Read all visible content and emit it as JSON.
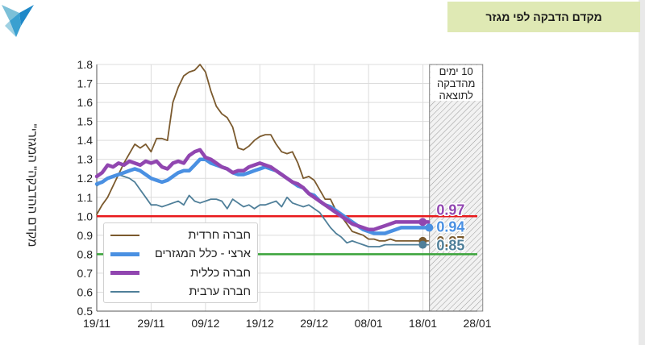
{
  "header": {
    "title": "מקדם הדבקה לפי מגזר"
  },
  "colors": {
    "header_bg": "#dfe9b4",
    "haredi": "#7b5a2e",
    "national": "#4a90e2",
    "general": "#9146b0",
    "arab": "#4f7f99",
    "threshold_red": "#e8191b",
    "threshold_green": "#3aa33a"
  },
  "chart_data": {
    "type": "line",
    "ylabel": "\"מקדם ההדבקה\" המגזרי",
    "ylim": [
      0.5,
      1.8
    ],
    "y_ticks": [
      "1.8",
      "1.7",
      "1.6",
      "1.5",
      "1.4",
      "1.3",
      "1.2",
      "1.1",
      "1.0",
      "0.9",
      "0.8",
      "0.7",
      "0.6",
      "0.5"
    ],
    "x_ticks": [
      "19/11",
      "29/11",
      "09/12",
      "19/12",
      "29/12",
      "08/01",
      "18/01",
      "28/01"
    ],
    "grid": true,
    "reference_lines": [
      {
        "y": 1.0,
        "color": "red"
      },
      {
        "y": 0.8,
        "color": "green"
      }
    ],
    "shaded_region": {
      "from_day": 61.2,
      "to_day": 71,
      "label": "10 ימים מהדבקה לתוצאה"
    },
    "series": [
      {
        "name": "חברה חרדית",
        "color": "#7b5a2e",
        "x": [
          0,
          1,
          2,
          3,
          4,
          5,
          6,
          7,
          8,
          9,
          10,
          11,
          12,
          13,
          14,
          15,
          16,
          17,
          18,
          19,
          20,
          21,
          22,
          23,
          24,
          25,
          26,
          27,
          28,
          29,
          30,
          31,
          32,
          33,
          34,
          35,
          36,
          37,
          38,
          39,
          40,
          41,
          42,
          43,
          44,
          45,
          46,
          47,
          48,
          49,
          50,
          51,
          52,
          53,
          54,
          55,
          56,
          57,
          58,
          59,
          60,
          61
        ],
        "values": [
          1.01,
          1.06,
          1.1,
          1.16,
          1.22,
          1.28,
          1.33,
          1.38,
          1.36,
          1.38,
          1.34,
          1.41,
          1.41,
          1.4,
          1.6,
          1.68,
          1.74,
          1.76,
          1.77,
          1.8,
          1.76,
          1.66,
          1.58,
          1.54,
          1.52,
          1.47,
          1.36,
          1.35,
          1.37,
          1.4,
          1.42,
          1.43,
          1.43,
          1.38,
          1.34,
          1.33,
          1.34,
          1.28,
          1.2,
          1.21,
          1.19,
          1.14,
          1.09,
          1.09,
          1.03,
          1.0,
          0.96,
          0.92,
          0.91,
          0.9,
          0.88,
          0.88,
          0.87,
          0.87,
          0.88,
          0.87,
          0.87,
          0.87,
          0.87,
          0.87,
          0.87,
          0.87
        ],
        "end_label": "0.87"
      },
      {
        "name": "ארצי - כלל המגזרים",
        "color": "#4a90e2",
        "x": [
          0,
          1,
          2,
          3,
          4,
          5,
          6,
          7,
          8,
          9,
          10,
          11,
          12,
          13,
          14,
          15,
          16,
          17,
          18,
          19,
          20,
          21,
          22,
          23,
          24,
          25,
          26,
          27,
          28,
          29,
          30,
          31,
          32,
          33,
          34,
          35,
          36,
          37,
          38,
          39,
          40,
          41,
          42,
          43,
          44,
          45,
          46,
          47,
          48,
          49,
          50,
          51,
          52,
          53,
          54,
          55,
          56,
          57,
          58,
          59,
          60,
          61
        ],
        "values": [
          1.17,
          1.18,
          1.2,
          1.21,
          1.22,
          1.23,
          1.24,
          1.25,
          1.24,
          1.22,
          1.2,
          1.19,
          1.18,
          1.19,
          1.21,
          1.23,
          1.24,
          1.24,
          1.27,
          1.3,
          1.3,
          1.28,
          1.27,
          1.26,
          1.25,
          1.23,
          1.22,
          1.22,
          1.23,
          1.24,
          1.25,
          1.26,
          1.25,
          1.24,
          1.22,
          1.2,
          1.18,
          1.16,
          1.15,
          1.12,
          1.11,
          1.08,
          1.06,
          1.05,
          1.03,
          1.01,
          0.99,
          0.97,
          0.95,
          0.93,
          0.92,
          0.91,
          0.91,
          0.91,
          0.92,
          0.93,
          0.94,
          0.94,
          0.94,
          0.94,
          0.94,
          0.94
        ],
        "end_label": "0.94"
      },
      {
        "name": "חברה כללית",
        "color": "#9146b0",
        "x": [
          0,
          1,
          2,
          3,
          4,
          5,
          6,
          7,
          8,
          9,
          10,
          11,
          12,
          13,
          14,
          15,
          16,
          17,
          18,
          19,
          20,
          21,
          22,
          23,
          24,
          25,
          26,
          27,
          28,
          29,
          30,
          31,
          32,
          33,
          34,
          35,
          36,
          37,
          38,
          39,
          40,
          41,
          42,
          43,
          44,
          45,
          46,
          47,
          48,
          49,
          50,
          51,
          52,
          53,
          54,
          55,
          56,
          57,
          58,
          59,
          60,
          61
        ],
        "values": [
          1.21,
          1.23,
          1.27,
          1.26,
          1.28,
          1.27,
          1.29,
          1.28,
          1.27,
          1.29,
          1.28,
          1.29,
          1.26,
          1.25,
          1.28,
          1.29,
          1.28,
          1.32,
          1.34,
          1.35,
          1.31,
          1.3,
          1.28,
          1.26,
          1.25,
          1.23,
          1.24,
          1.24,
          1.26,
          1.27,
          1.28,
          1.27,
          1.26,
          1.24,
          1.22,
          1.2,
          1.18,
          1.17,
          1.15,
          1.12,
          1.1,
          1.08,
          1.06,
          1.04,
          1.02,
          1.0,
          0.98,
          0.96,
          0.95,
          0.94,
          0.93,
          0.93,
          0.94,
          0.95,
          0.96,
          0.97,
          0.97,
          0.97,
          0.97,
          0.97,
          0.97,
          0.97
        ],
        "end_label": "0.97"
      },
      {
        "name": "חברה ערבית",
        "color": "#4f7f99",
        "x": [
          0,
          1,
          2,
          3,
          4,
          5,
          6,
          7,
          8,
          9,
          10,
          11,
          12,
          13,
          14,
          15,
          16,
          17,
          18,
          19,
          20,
          21,
          22,
          23,
          24,
          25,
          26,
          27,
          28,
          29,
          30,
          31,
          32,
          33,
          34,
          35,
          36,
          37,
          38,
          39,
          40,
          41,
          42,
          43,
          44,
          45,
          46,
          47,
          48,
          49,
          50,
          51,
          52,
          53,
          54,
          55,
          56,
          57,
          58,
          59,
          60,
          61
        ],
        "values": [
          1.16,
          1.18,
          1.2,
          1.21,
          1.22,
          1.21,
          1.2,
          1.18,
          1.14,
          1.1,
          1.06,
          1.06,
          1.05,
          1.06,
          1.07,
          1.08,
          1.06,
          1.11,
          1.08,
          1.07,
          1.08,
          1.09,
          1.09,
          1.08,
          1.04,
          1.09,
          1.07,
          1.05,
          1.06,
          1.04,
          1.06,
          1.06,
          1.07,
          1.08,
          1.05,
          1.1,
          1.07,
          1.06,
          1.05,
          1.06,
          1.04,
          1.02,
          0.98,
          0.94,
          0.91,
          0.89,
          0.86,
          0.87,
          0.86,
          0.85,
          0.84,
          0.84,
          0.84,
          0.85,
          0.85,
          0.85,
          0.85,
          0.85,
          0.85,
          0.85,
          0.85,
          0.85
        ],
        "end_label": "0.85"
      }
    ],
    "legend": {
      "placement": "bottom-left",
      "entries": [
        "חברה חרדית",
        "ארצי - כלל המגזרים",
        "חברה כללית",
        "חברה ערבית"
      ]
    }
  }
}
